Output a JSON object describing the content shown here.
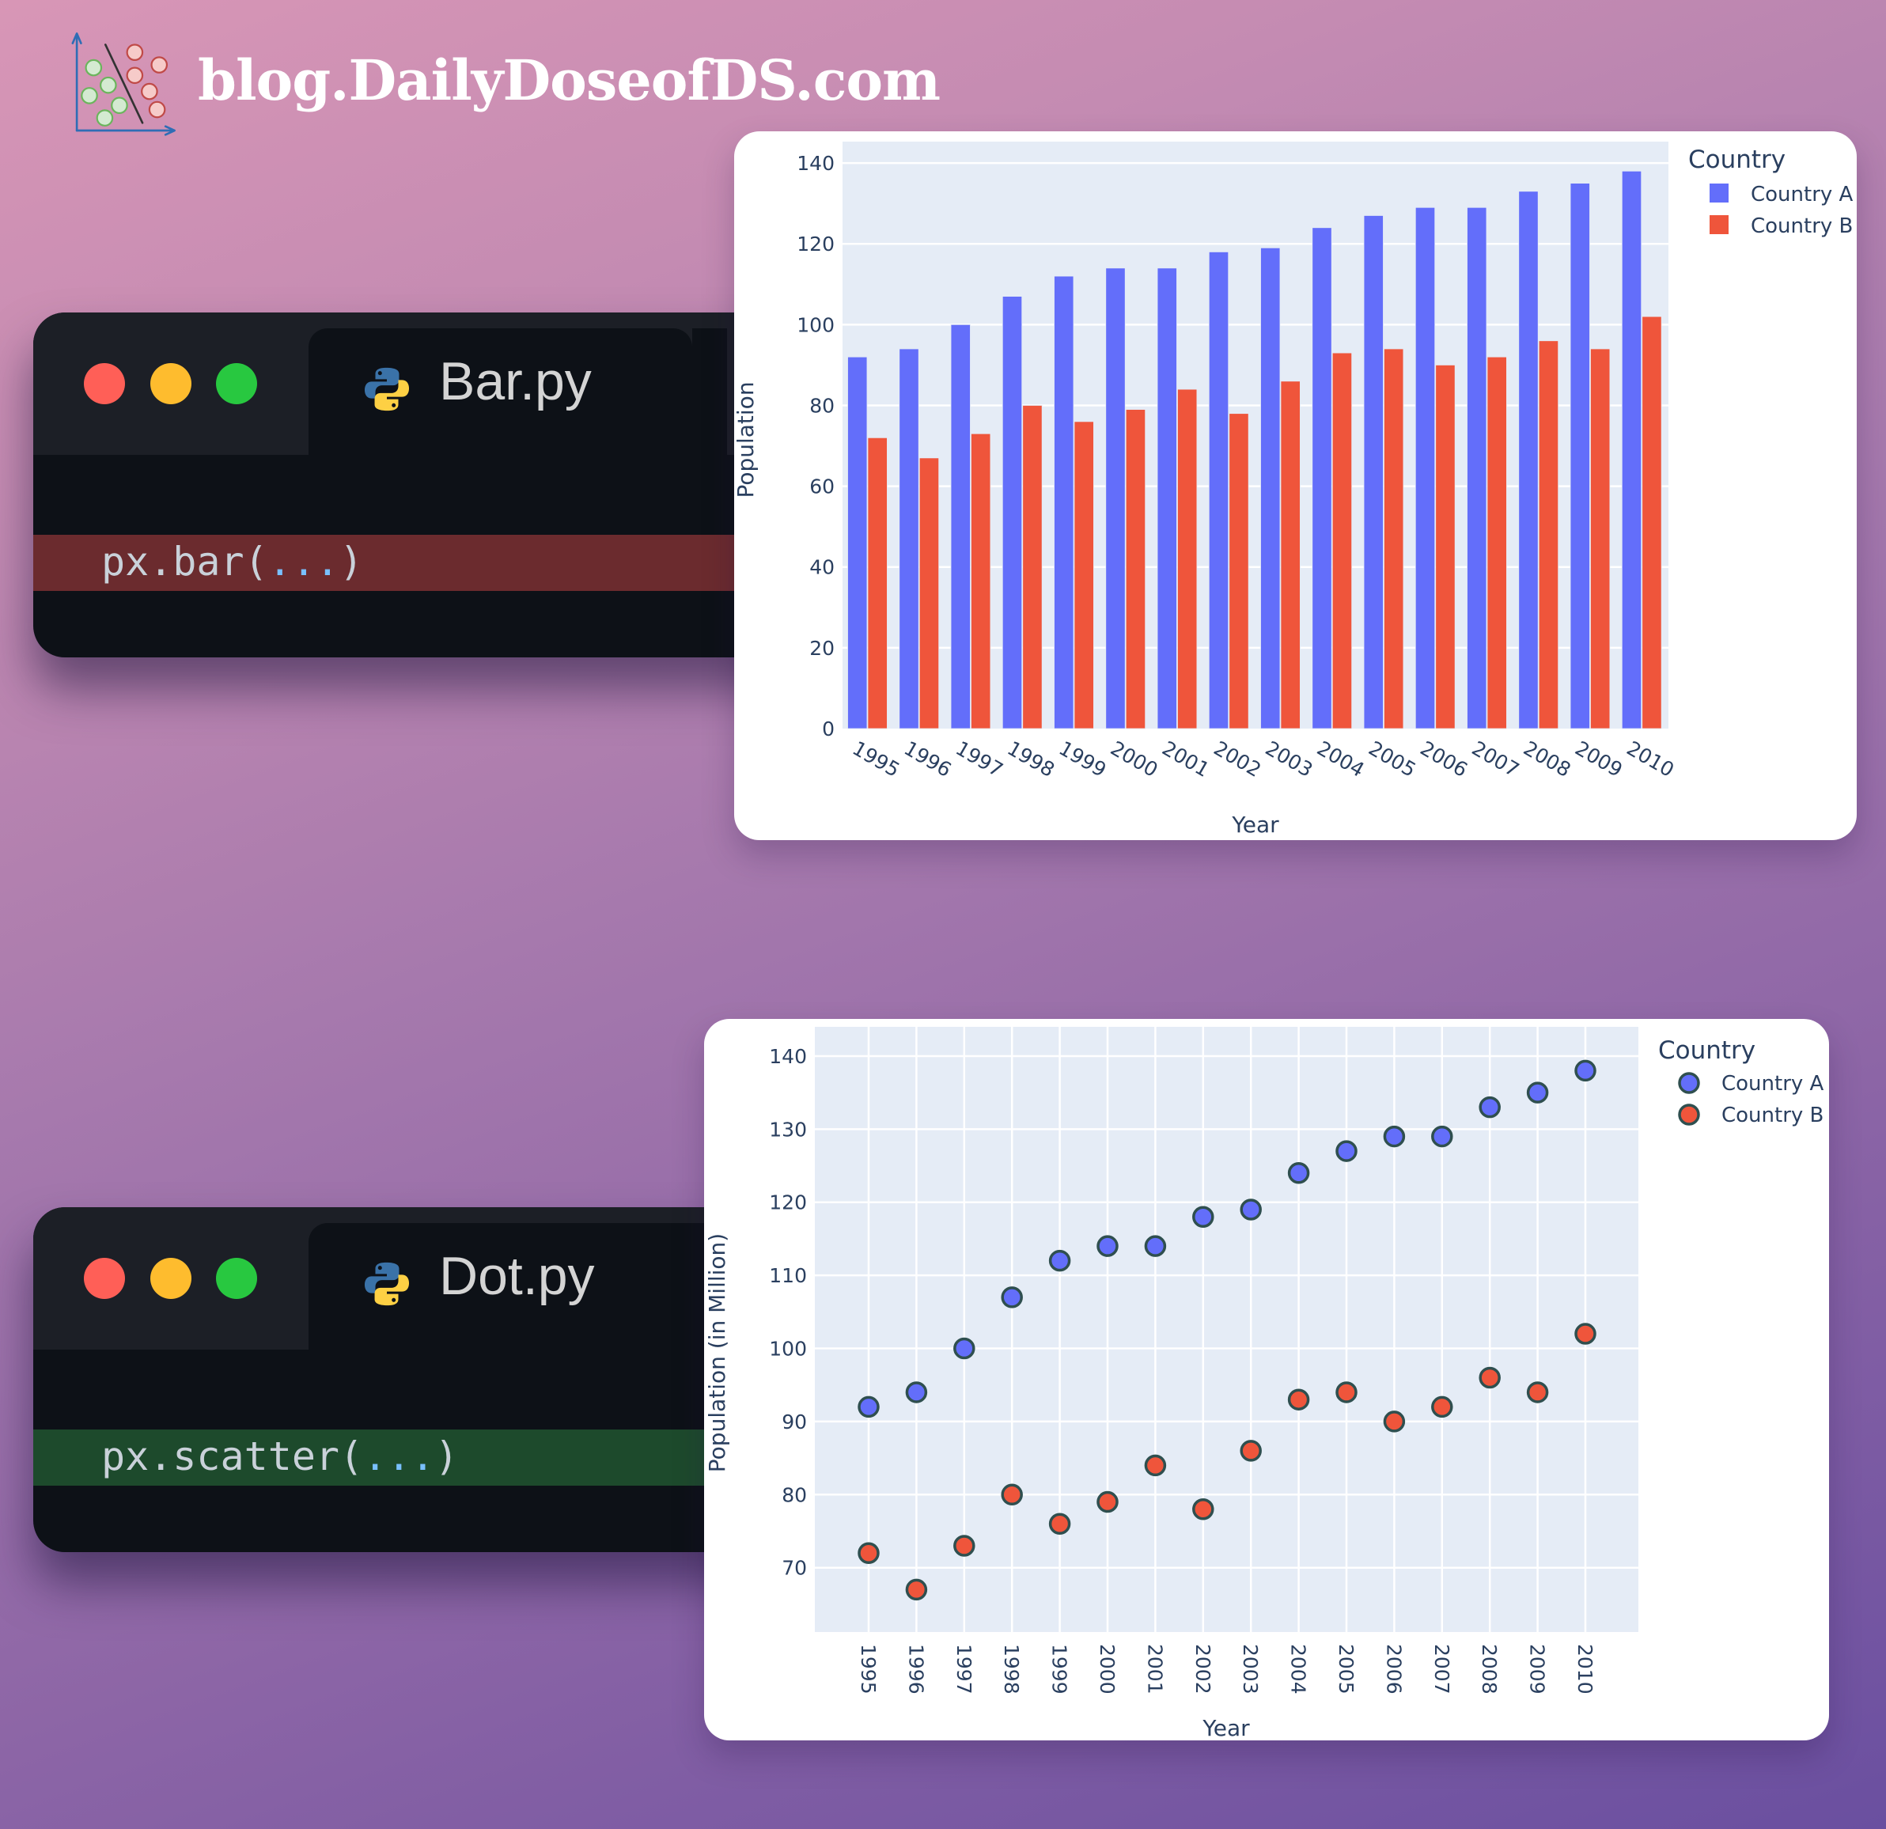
{
  "brand": {
    "site": "blog.DailyDoseofDS.com",
    "logo_icon": "scatter-classifier-logo-icon"
  },
  "editors": [
    {
      "id": "bar",
      "filename": "Bar.py",
      "file_icon": "python-icon",
      "code_prefix": "px.bar(",
      "code_args": "...",
      "code_suffix": ")",
      "highlight_color": "#6b2b2e"
    },
    {
      "id": "scatter",
      "filename": "Dot.py",
      "file_icon": "python-icon",
      "code_prefix": "px.scatter(",
      "code_args": "...",
      "code_suffix": ")",
      "highlight_color": "#1d4a2c"
    }
  ],
  "colors": {
    "country_a": "#636efa",
    "country_b": "#ef553b",
    "plot_bg": "#e5ecf6",
    "axis_text": "#2a3f5f",
    "marker_outline": "#2f4f4f"
  },
  "chart_data": [
    {
      "type": "bar",
      "barmode": "group",
      "title": "",
      "xlabel": "Year",
      "ylabel": "Population",
      "categories": [
        "1995",
        "1996",
        "1997",
        "1998",
        "1999",
        "2000",
        "2001",
        "2002",
        "2003",
        "2004",
        "2005",
        "2006",
        "2007",
        "2008",
        "2009",
        "2010"
      ],
      "series": [
        {
          "name": "Country A",
          "color": "#636efa",
          "values": [
            92,
            94,
            100,
            107,
            112,
            114,
            114,
            118,
            119,
            124,
            127,
            129,
            129,
            133,
            135,
            138
          ]
        },
        {
          "name": "Country B",
          "color": "#ef553b",
          "values": [
            72,
            67,
            73,
            80,
            76,
            79,
            84,
            78,
            86,
            93,
            94,
            90,
            92,
            96,
            94,
            102
          ]
        }
      ],
      "yticks": [
        0,
        20,
        40,
        60,
        80,
        100,
        120,
        140
      ],
      "ylim": [
        0,
        145.3
      ],
      "xtick_angle": 30,
      "grid": true,
      "legend": {
        "title": "Country",
        "position": "right-top",
        "entries": [
          "Country A",
          "Country B"
        ]
      }
    },
    {
      "type": "scatter",
      "title": "",
      "xlabel": "Year",
      "ylabel": "Population (in Million)",
      "categories": [
        "1995",
        "1996",
        "1997",
        "1998",
        "1999",
        "2000",
        "2001",
        "2002",
        "2003",
        "2004",
        "2005",
        "2006",
        "2007",
        "2008",
        "2009",
        "2010"
      ],
      "series": [
        {
          "name": "Country A",
          "color": "#636efa",
          "values": [
            92,
            94,
            100,
            107,
            112,
            114,
            114,
            118,
            119,
            124,
            127,
            129,
            129,
            133,
            135,
            138
          ]
        },
        {
          "name": "Country B",
          "color": "#ef553b",
          "values": [
            72,
            67,
            73,
            80,
            76,
            79,
            84,
            78,
            86,
            93,
            94,
            90,
            92,
            96,
            94,
            102
          ]
        }
      ],
      "yticks": [
        70,
        80,
        90,
        100,
        110,
        120,
        130,
        140
      ],
      "ylim": [
        61.2,
        144
      ],
      "xtick_angle": 90,
      "grid": true,
      "legend": {
        "title": "Country",
        "position": "right-top",
        "entries": [
          "Country A",
          "Country B"
        ]
      }
    }
  ]
}
